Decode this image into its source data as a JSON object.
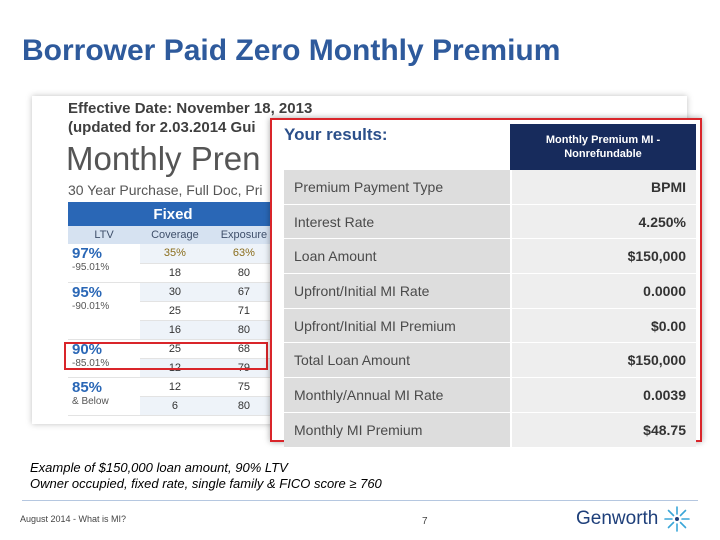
{
  "slide": {
    "title": "Borrower Paid Zero Monthly Premium",
    "example_line1": "Example of $150,000 loan amount, 90% LTV",
    "example_line2": "Owner occupied, fixed rate, single family & FICO score ≥ 760",
    "footer_left": "August 2014 - What is MI?",
    "page_number": "7",
    "logo_text": "Genworth",
    "logo_icon": "genworth-star-logo"
  },
  "rate_card": {
    "effective_line1": "Effective Date: November 18, 2013",
    "effective_line2": "(updated for 2.03.2014 Gui",
    "big_title": "Monthly Pren",
    "subtitle": "30 Year Purchase, Full Doc, Pri",
    "fixed_header": "Fixed",
    "columns": [
      "LTV",
      "Coverage",
      "Exposure"
    ],
    "groups": [
      {
        "ltv": "97%",
        "range": "-95.01%",
        "rows": [
          [
            "35%",
            "63%"
          ],
          [
            "18",
            "80"
          ]
        ]
      },
      {
        "ltv": "95%",
        "range": "-90.01%",
        "rows": [
          [
            "30",
            "67"
          ],
          [
            "25",
            "71"
          ],
          [
            "16",
            "80"
          ]
        ]
      },
      {
        "ltv": "90%",
        "range": "-85.01%",
        "rows": [
          [
            "25",
            "68"
          ],
          [
            "12",
            "79"
          ]
        ]
      },
      {
        "ltv": "85%",
        "range": "& Below",
        "rows": [
          [
            "12",
            "75"
          ],
          [
            "6",
            "80"
          ]
        ]
      }
    ]
  },
  "results": {
    "title": "Your results:",
    "column_header_line1": "Monthly Premium MI -",
    "column_header_line2": "Nonrefundable",
    "rows": [
      {
        "label": "Premium Payment Type",
        "value": "BPMI"
      },
      {
        "label": "Interest Rate",
        "value": "4.250%"
      },
      {
        "label": "Loan Amount",
        "value": "$150,000"
      },
      {
        "label": "Upfront/Initial MI Rate",
        "value": "0.0000"
      },
      {
        "label": "Upfront/Initial MI Premium",
        "value": "$0.00"
      },
      {
        "label": "Total Loan Amount",
        "value": "$150,000"
      },
      {
        "label": "Monthly/Annual MI Rate",
        "value": "0.0039"
      },
      {
        "label": "Monthly MI Premium",
        "value": "$48.75"
      }
    ]
  },
  "colors": {
    "title_blue": "#2e5a9c",
    "highlight_red": "#d9252a",
    "header_navy": "#172b5c",
    "table_blue": "#2a67b6"
  }
}
